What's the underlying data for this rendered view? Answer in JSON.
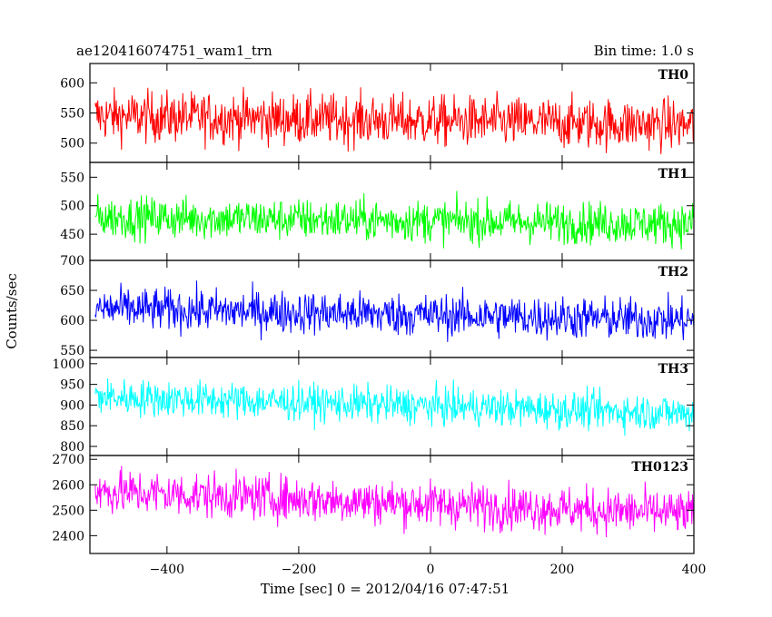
{
  "header": {
    "title": "ae120416074751_wam1_trn",
    "bin_time": "Bin time: 1.0 s"
  },
  "chart_data": {
    "type": "line",
    "shared_x": true,
    "xlabel": "Time [sec] 0 = 2012/04/16 07:47:51",
    "ylabel": "Counts/sec",
    "xlim": [
      -517,
      400
    ],
    "x_ticks": [
      -400,
      -200,
      0,
      200,
      400
    ],
    "panels": [
      {
        "name": "TH0",
        "color": "#ff0000",
        "ylim": [
          468,
          632
        ],
        "yticks": [
          500,
          550,
          600
        ],
        "x_start": -509,
        "x_end": 400,
        "mean_start": 545,
        "mean_end": 530,
        "noise_amplitude": 38
      },
      {
        "name": "TH1",
        "color": "#00ff00",
        "ylim": [
          404,
          576
        ],
        "yticks": [
          450,
          500,
          550
        ],
        "x_start": -509,
        "x_end": 400,
        "mean_start": 480,
        "mean_end": 468,
        "noise_amplitude": 33
      },
      {
        "name": "TH2",
        "color": "#0000ff",
        "ylim": [
          538,
          700
        ],
        "yticks": [
          550,
          600,
          650,
          700
        ],
        "x_start": -509,
        "x_end": 400,
        "mean_start": 620,
        "mean_end": 600,
        "noise_amplitude": 32
      },
      {
        "name": "TH3",
        "color": "#00ffff",
        "ylim": [
          778,
          1015
        ],
        "yticks": [
          800,
          850,
          900,
          950,
          1000
        ],
        "x_start": -509,
        "x_end": 400,
        "mean_start": 920,
        "mean_end": 880,
        "noise_amplitude": 40
      },
      {
        "name": "TH0123",
        "color": "#ff00ff",
        "ylim": [
          2330,
          2715
        ],
        "yticks": [
          2400,
          2500,
          2600,
          2700
        ],
        "x_start": -509,
        "x_end": 400,
        "mean_start": 2575,
        "mean_end": 2485,
        "noise_amplitude": 80
      }
    ]
  }
}
